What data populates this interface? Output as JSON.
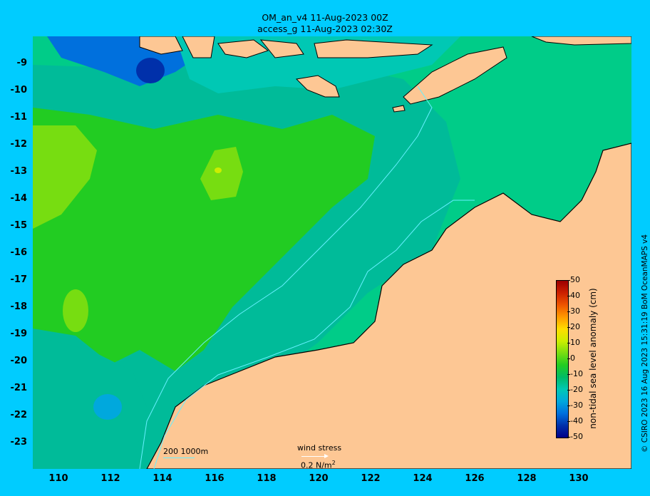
{
  "title": {
    "line1": "OM_an_v4  11-Aug-2023 00Z",
    "line2": "access_g 11-Aug-2023 02:30Z"
  },
  "axes": {
    "lat_labels": [
      "-9",
      "-10",
      "-11",
      "-12",
      "-13",
      "-14",
      "-15",
      "-16",
      "-17",
      "-18",
      "-19",
      "-20",
      "-21",
      "-22",
      "-23"
    ],
    "lon_labels": [
      "110",
      "112",
      "114",
      "116",
      "118",
      "120",
      "122",
      "124",
      "126",
      "128",
      "130"
    ]
  },
  "colorbar": {
    "label": "non-tidal sea level anomaly (cm)",
    "ticks": [
      "50",
      "40",
      "30",
      "20",
      "10",
      "0",
      "-10",
      "-20",
      "-30",
      "-40",
      "-50"
    ],
    "colors": [
      "#9c0000",
      "#cc2000",
      "#ee5500",
      "#ff9900",
      "#ffdd00",
      "#ccee00",
      "#77dd11",
      "#22cc22",
      "#00bb66",
      "#00c8b4",
      "#00a8dd",
      "#0070dd",
      "#0030aa",
      "#000088"
    ]
  },
  "legend": {
    "isobaths": "200  1000m",
    "wind_label": "wind stress",
    "wind_scale": "0.2 N/m",
    "wind_scale_sup": "2"
  },
  "credit": "© CSIRO 2023   16 Aug 2023 15:31:19 BoM OceanMAPS v4",
  "map_colors": {
    "land": "#fdc794",
    "ocean_base": "#00cc88",
    "anomaly_green": "#22cc22",
    "anomaly_lightgreen": "#77dd11",
    "anomaly_cyan": "#00bb99",
    "anomaly_blue": "#0070dd",
    "isobath": "#66f0ff",
    "coast": "#000000"
  }
}
